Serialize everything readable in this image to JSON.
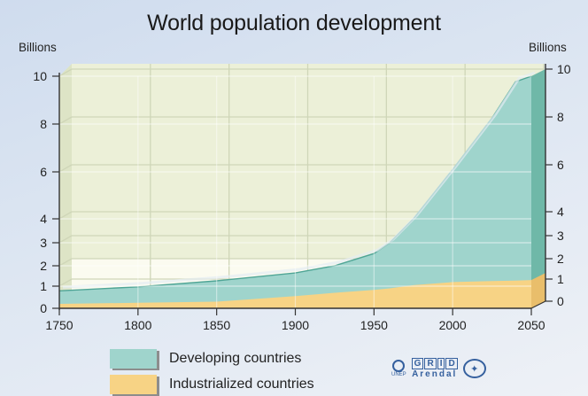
{
  "chart_data": {
    "type": "area",
    "stacked": true,
    "title": "World population development",
    "ylabel_left": "Billions",
    "ylabel_right": "Billions",
    "xlabel": "",
    "x_ticks": [
      1750,
      1800,
      1850,
      1900,
      1950,
      2000,
      2050
    ],
    "y_ticks": [
      0,
      1,
      2,
      3,
      4,
      6,
      8,
      10
    ],
    "y_scale_note": "non-linear: 0-4 spaced ~1 unit each, 4-10 spaced every 2",
    "ylim": [
      0,
      10
    ],
    "xlim": [
      1750,
      2050
    ],
    "grid": true,
    "x": [
      1750,
      1800,
      1850,
      1900,
      1925,
      1950,
      1960,
      1975,
      2000,
      2025,
      2040,
      2050
    ],
    "series": [
      {
        "name": "Industrialized countries",
        "color": "#f7d385",
        "values": [
          0.2,
          0.25,
          0.3,
          0.55,
          0.7,
          0.83,
          0.9,
          1.05,
          1.2,
          1.25,
          1.27,
          1.3
        ]
      },
      {
        "name": "Developing countries",
        "color": "#9fd4cc",
        "values": [
          0.59,
          0.72,
          0.96,
          1.1,
          1.3,
          1.7,
          2.1,
          2.95,
          4.9,
          7.0,
          8.5,
          8.7
        ]
      }
    ],
    "totals": [
      0.79,
      0.97,
      1.26,
      1.65,
      2.0,
      2.53,
      3.0,
      4.0,
      6.1,
      8.25,
      9.77,
      10.0
    ],
    "legend_position": "bottom-left"
  },
  "title": "World population development",
  "unit_left": "Billions",
  "unit_right": "Billions",
  "legend": [
    {
      "label": "Developing countries",
      "color": "#9fd4cc"
    },
    {
      "label": "Industrialized countries",
      "color": "#f7d385"
    }
  ],
  "logos": {
    "unep": "UNEP",
    "grid_letters": [
      "G",
      "R",
      "I",
      "D"
    ],
    "grid_sub": "Arendal",
    "un": "UN"
  }
}
